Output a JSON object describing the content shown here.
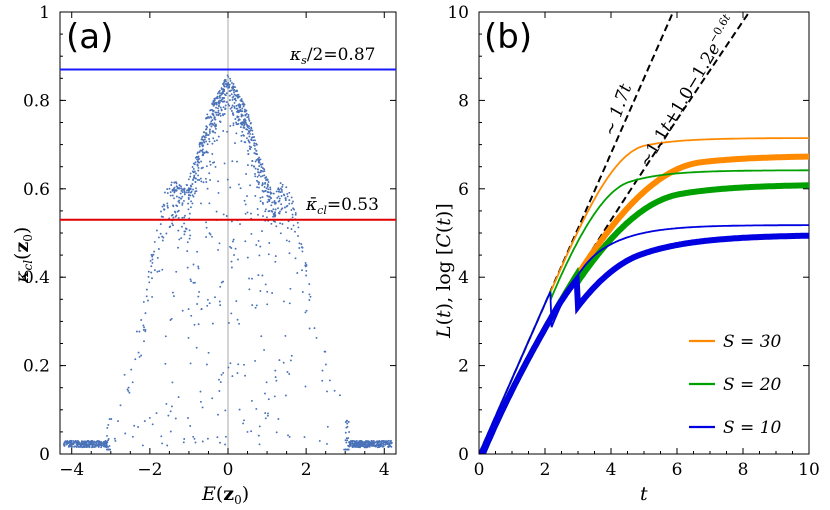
{
  "chart_data": [
    {
      "type": "scatter",
      "panel_label": "(a)",
      "xlabel": "E(z₀)",
      "ylabel": "κ_cl(z₀)",
      "xlim": [
        -4.3,
        4.3
      ],
      "ylim": [
        0,
        1
      ],
      "xticks": [
        -4,
        -2,
        0,
        2,
        4
      ],
      "xtick_labels": [
        "−4",
        "−2",
        "0",
        "2",
        "4"
      ],
      "yticks": [
        0,
        0.2,
        0.4,
        0.6,
        0.8,
        1
      ],
      "ytick_labels": [
        "0",
        "0.2",
        "0.4",
        "0.6",
        "0.8",
        "1"
      ],
      "colors": {
        "points": "#4a72b8",
        "blue_line": "#1a1aff",
        "red_line": "#e00000",
        "vline": "#aaaaaa"
      },
      "hlines": [
        {
          "name": "κ_s/2=0.87",
          "y": 0.87,
          "color": "#1a1aff"
        },
        {
          "name": "κ̅_cl=0.53",
          "y": 0.53,
          "color": "#e00000"
        }
      ],
      "vline_x": 0,
      "envelope": {
        "x": [
          -4.3,
          -3.2,
          -3.0,
          -2.6,
          -2.2,
          -1.9,
          -1.6,
          -1.4,
          -1.1,
          -0.8,
          -0.5,
          -0.25,
          0,
          0.25,
          0.5,
          0.8,
          1.1,
          1.4,
          1.6,
          1.9,
          2.2,
          2.6,
          3.0,
          3.2,
          4.3
        ],
        "y": [
          0.02,
          0.02,
          0.1,
          0.2,
          0.34,
          0.48,
          0.6,
          0.62,
          0.6,
          0.68,
          0.78,
          0.82,
          0.86,
          0.82,
          0.78,
          0.68,
          0.6,
          0.62,
          0.6,
          0.48,
          0.34,
          0.2,
          0.1,
          0.02,
          0.02
        ]
      },
      "point_count": 1700
    },
    {
      "type": "line",
      "panel_label": "(b)",
      "xlabel": "t",
      "ylabel": "L(t),   log [C(t)]",
      "xlim": [
        0,
        10
      ],
      "ylim": [
        0,
        10
      ],
      "xticks": [
        0,
        2,
        4,
        6,
        8,
        10
      ],
      "xtick_labels": [
        "0",
        "2",
        "4",
        "6",
        "8",
        "10"
      ],
      "yticks": [
        0,
        2,
        4,
        6,
        8,
        10
      ],
      "ytick_labels": [
        "0",
        "2",
        "4",
        "6",
        "8",
        "10"
      ],
      "reference_lines": [
        {
          "label": "∼ 1.7t",
          "slope": 1.7,
          "intercept": 0
        },
        {
          "label": "∼1.1t+1.0−1.2e^{−0.6t}",
          "slope": 1.1,
          "intercept": 1.0,
          "exp_amp": -1.2,
          "exp_rate": 0.6
        }
      ],
      "series": [
        {
          "name": "S = 30",
          "color": "#ff8a00",
          "thin_saturation": 7.15,
          "thick_saturation": 6.75
        },
        {
          "name": "S = 20",
          "color": "#00a000",
          "thin_saturation": 6.42,
          "thick_saturation": 6.1
        },
        {
          "name": "S = 10",
          "color": "#0000e0",
          "thin_saturation": 5.18,
          "thick_saturation": 4.96
        }
      ],
      "legend_position": "bottom-right"
    }
  ]
}
